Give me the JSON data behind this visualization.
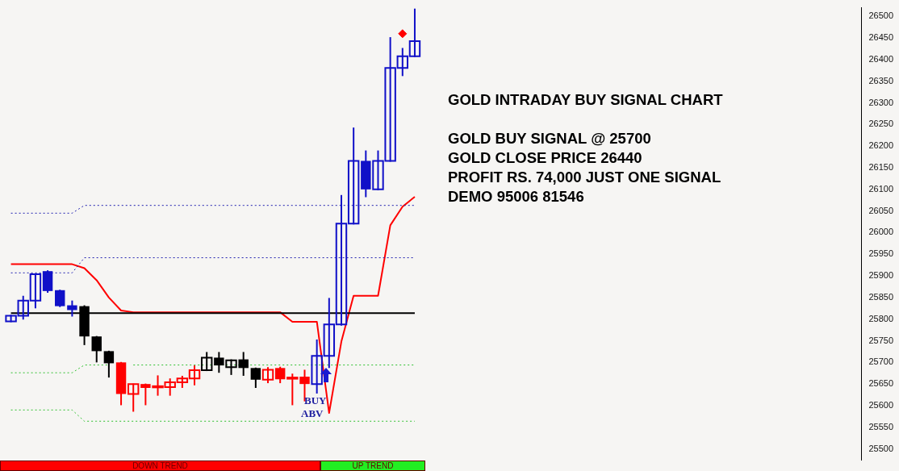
{
  "chart_data": {
    "type": "candlestick",
    "title": "GOLD INTRADAY BUY SIGNAL CHART",
    "categories": [
      null,
      null,
      null,
      null,
      null,
      null,
      null,
      null,
      null,
      null,
      null,
      null,
      null,
      null,
      null,
      null,
      null,
      null,
      null,
      null,
      null,
      null,
      null,
      null,
      null,
      null,
      null,
      null,
      null,
      null,
      null,
      null,
      null,
      null,
      null,
      null,
      null,
      null,
      null,
      null,
      null,
      null,
      null,
      null,
      null,
      null,
      null,
      null,
      null,
      null,
      null,
      null,
      null,
      null,
      null,
      null,
      null,
      null,
      null,
      null,
      null,
      null,
      null,
      null,
      null,
      null,
      null,
      null,
      null,
      null
    ],
    "ohlc": [
      [
        25795,
        25810,
        25793,
        25808
      ],
      [
        25808,
        25854,
        25799,
        25843
      ],
      [
        25843,
        25905,
        25825,
        25904
      ],
      [
        25911,
        25913,
        25861,
        25865
      ],
      [
        25867,
        25868,
        25828,
        25830
      ],
      [
        25832,
        25843,
        25806,
        25821
      ],
      [
        25830,
        25832,
        25740,
        25760
      ],
      [
        25760,
        25761,
        25700,
        25726
      ],
      [
        25726,
        25727,
        25665,
        25698
      ],
      [
        25700,
        25701,
        25601,
        25627
      ],
      [
        25627,
        25651,
        25586,
        25650
      ],
      [
        25650,
        25651,
        25601,
        25641
      ],
      [
        25643,
        25670,
        25623,
        25645
      ],
      [
        25643,
        25663,
        25623,
        25654
      ],
      [
        25654,
        25669,
        25641,
        25663
      ],
      [
        25663,
        25693,
        25647,
        25682
      ],
      [
        25682,
        25724,
        25680,
        25711
      ],
      [
        25711,
        25724,
        25676,
        25693
      ],
      [
        25689,
        25707,
        25671,
        25705
      ],
      [
        25707,
        25724,
        25669,
        25687
      ],
      [
        25687,
        25688,
        25641,
        25660
      ],
      [
        25660,
        25689,
        25652,
        25683
      ],
      [
        25687,
        25690,
        25652,
        25661
      ],
      [
        25663,
        25674,
        25601,
        25665
      ],
      [
        25667,
        25683,
        25610,
        25650
      ],
      [
        25650,
        25753,
        25628,
        25715
      ],
      [
        25715,
        25849,
        25687,
        25788
      ],
      [
        25788,
        26087,
        25785,
        26021
      ],
      [
        26021,
        26243,
        26019,
        26166
      ],
      [
        26166,
        26190,
        26082,
        26100
      ],
      [
        26100,
        26190,
        26098,
        26166
      ],
      [
        26166,
        26452,
        26164,
        26381
      ],
      [
        26381,
        26427,
        26362,
        26408
      ],
      [
        26408,
        26518,
        26406,
        26443
      ],
      null,
      null,
      null,
      null,
      null,
      null,
      null,
      null,
      null,
      null,
      null,
      null,
      null,
      null,
      null,
      null,
      null,
      null,
      null,
      null,
      null,
      null,
      null,
      null,
      null,
      null,
      null,
      null,
      null,
      null,
      null,
      null,
      null,
      null,
      null,
      null
    ],
    "colors": [
      "#1010c8",
      "#1010c8",
      "#1010c8",
      "#1010c8",
      "#1010c8",
      "#1010c8",
      "#000000",
      "#000000",
      "#000000",
      "#ff0000",
      "#ff0000",
      "#ff0000",
      "#ff0000",
      "#ff0000",
      "#ff0000",
      "#ff0000",
      "#000000",
      "#000000",
      "#000000",
      "#000000",
      "#000000",
      "#ff0000",
      "#ff0000",
      "#ff0000",
      "#ff0000",
      "#1010c8",
      "#1010c8",
      "#1010c8",
      "#1010c8",
      "#1010c8",
      "#1010c8",
      "#1010c8",
      "#1010c8",
      "#1010c8",
      null,
      null,
      null,
      null,
      null,
      null,
      null,
      null,
      null,
      null,
      null,
      null,
      null,
      null,
      null,
      null,
      null,
      null,
      null,
      null,
      null,
      null,
      null,
      null,
      null,
      null,
      null,
      null,
      null,
      null,
      null,
      null,
      null,
      null,
      null,
      null
    ],
    "series": [
      {
        "type": "line",
        "color": "#2020b0",
        "line_style": "dotted",
        "marker": "none",
        "values": [
          26045,
          26045,
          26045,
          26045,
          26045,
          26045,
          26063,
          26063,
          26063,
          26063,
          26063,
          26063,
          26063,
          26063,
          26063,
          26063,
          26063,
          26063,
          26063,
          26063,
          26063,
          26063,
          26063,
          26063,
          26063,
          26063,
          26063,
          26063,
          26063,
          26063,
          26063,
          26063,
          26063,
          26063,
          null,
          null,
          null,
          null,
          null,
          null,
          null,
          null,
          null,
          null,
          null,
          null,
          null,
          null,
          null,
          null,
          null,
          null,
          null,
          null,
          null,
          null,
          null,
          null,
          null,
          null,
          null,
          null,
          null,
          null,
          null,
          null,
          null,
          null,
          null,
          null
        ]
      },
      {
        "type": "line",
        "color": "#2020b0",
        "line_style": "dotted",
        "marker": "none",
        "values": [
          25907,
          25907,
          25907,
          25907,
          25907,
          25907,
          25942,
          25942,
          25942,
          25942,
          25942,
          25942,
          25942,
          25942,
          25942,
          25942,
          25942,
          25942,
          25942,
          25942,
          25942,
          25942,
          25942,
          25942,
          25942,
          25942,
          25942,
          25942,
          25942,
          25942,
          25942,
          25942,
          25942,
          25942,
          null,
          null,
          null,
          null,
          null,
          null,
          null,
          null,
          null,
          null,
          null,
          null,
          null,
          null,
          null,
          null,
          null,
          null,
          null,
          null,
          null,
          null,
          null,
          null,
          null,
          null,
          null,
          null,
          null,
          null,
          null,
          null,
          null,
          null,
          null,
          null
        ]
      },
      {
        "type": "line",
        "color": "#30c030",
        "line_style": "dotted",
        "marker": "none",
        "values": [
          25676,
          25676,
          25676,
          25676,
          25676,
          25676,
          25694,
          25694,
          25694,
          null,
          25694,
          25694,
          25694,
          25694,
          25694,
          25694,
          25694,
          25694,
          25694,
          25694,
          25694,
          25694,
          25694,
          25694,
          25694,
          25694,
          25694,
          25694,
          25694,
          25694,
          25694,
          25694,
          25694,
          25694,
          null,
          null,
          null,
          null,
          null,
          null,
          null,
          null,
          null,
          null,
          null,
          null,
          null,
          null,
          null,
          null,
          null,
          null,
          null,
          null,
          null,
          null,
          null,
          null,
          null,
          null,
          null,
          null,
          null,
          null,
          null,
          null,
          null,
          null,
          null,
          null
        ]
      },
      {
        "type": "line",
        "color": "#30c030",
        "line_style": "dotted",
        "marker": "none",
        "values": [
          25590,
          25590,
          25590,
          25590,
          25590,
          25590,
          25564,
          25564,
          25564,
          25564,
          25564,
          25564,
          25564,
          25564,
          25564,
          25564,
          25564,
          25564,
          25564,
          25564,
          25564,
          25564,
          25564,
          25564,
          25564,
          25564,
          25564,
          25564,
          25564,
          25564,
          25564,
          25564,
          25564,
          25564,
          null,
          null,
          null,
          null,
          null,
          null,
          null,
          null,
          null,
          null,
          null,
          null,
          null,
          null,
          null,
          null,
          null,
          null,
          null,
          null,
          null,
          null,
          null,
          null,
          null,
          null,
          null,
          null,
          null,
          null,
          null,
          null,
          null,
          null,
          null,
          null
        ]
      },
      {
        "type": "line",
        "color": "#000000",
        "line_style": "solid",
        "marker": "none",
        "values": [
          25814,
          25814,
          25814,
          25814,
          25814,
          25814,
          25814,
          25814,
          25814,
          25814,
          25814,
          25814,
          25814,
          25814,
          25814,
          25814,
          25814,
          25814,
          25814,
          25814,
          25814,
          25814,
          25814,
          25814,
          25814,
          25814,
          25814,
          25814,
          25814,
          25814,
          25814,
          25814,
          25814,
          25814,
          null,
          null,
          null,
          null,
          null,
          null,
          null,
          null,
          null,
          null,
          null,
          null,
          null,
          null,
          null,
          null,
          null,
          null,
          null,
          null,
          null,
          null,
          null,
          null,
          null,
          null,
          null,
          null,
          null,
          null,
          null,
          null,
          null,
          null,
          null,
          null
        ]
      },
      {
        "type": "line",
        "color": "#ff0000",
        "line_style": "solid",
        "marker": "none",
        "values": [
          25927,
          25927,
          25927,
          25927,
          25927,
          25927,
          25918,
          25890,
          25850,
          25820,
          25816,
          25816,
          25816,
          25816,
          25816,
          25816,
          25816,
          25816,
          25816,
          25816,
          25816,
          25816,
          25816,
          25794,
          25794,
          25794,
          25583,
          25748,
          25854,
          25854,
          25854,
          26017,
          26060,
          26083,
          null,
          null,
          null,
          null,
          null,
          null,
          null,
          null,
          null,
          null,
          null,
          null,
          null,
          null,
          null,
          null,
          null,
          null,
          null,
          null,
          null,
          null,
          null,
          null,
          null,
          null,
          null,
          null,
          null,
          null,
          null,
          null,
          null,
          null,
          null,
          null
        ]
      },
      {
        "type": "scatter",
        "color": "#ff0000",
        "marker": "diamond",
        "values": [
          null,
          null,
          null,
          null,
          null,
          null,
          null,
          null,
          null,
          null,
          null,
          null,
          null,
          null,
          null,
          null,
          null,
          null,
          null,
          null,
          null,
          null,
          null,
          null,
          null,
          null,
          null,
          null,
          null,
          null,
          null,
          null,
          26460,
          null,
          null,
          null,
          null,
          null,
          null,
          null,
          null,
          null,
          null,
          null,
          null,
          null,
          null,
          null,
          null,
          null,
          null,
          null,
          null,
          null,
          null,
          null,
          null,
          null,
          null,
          null,
          null,
          null,
          null,
          null,
          null,
          null,
          null,
          null,
          null,
          null
        ]
      }
    ],
    "ylim": [
      25475,
      26520
    ],
    "yticks": [
      25500,
      25550,
      25600,
      25650,
      25700,
      25750,
      25800,
      25850,
      25900,
      25950,
      26000,
      26050,
      26100,
      26150,
      26200,
      26250,
      26300,
      26350,
      26400,
      26450,
      26500
    ],
    "grid": false,
    "legend": false,
    "tick_labels": "y",
    "annotations": [
      "GOLD BUY SIGNAL @ 25700",
      "GOLD CLOSE PRICE 26440",
      "PROFIT RS. 74,000 JUST ONE SIGNAL",
      "DEMO 95006 81546",
      "BUY",
      "ABV",
      "DOWN TREND",
      "UP TREND"
    ]
  }
}
